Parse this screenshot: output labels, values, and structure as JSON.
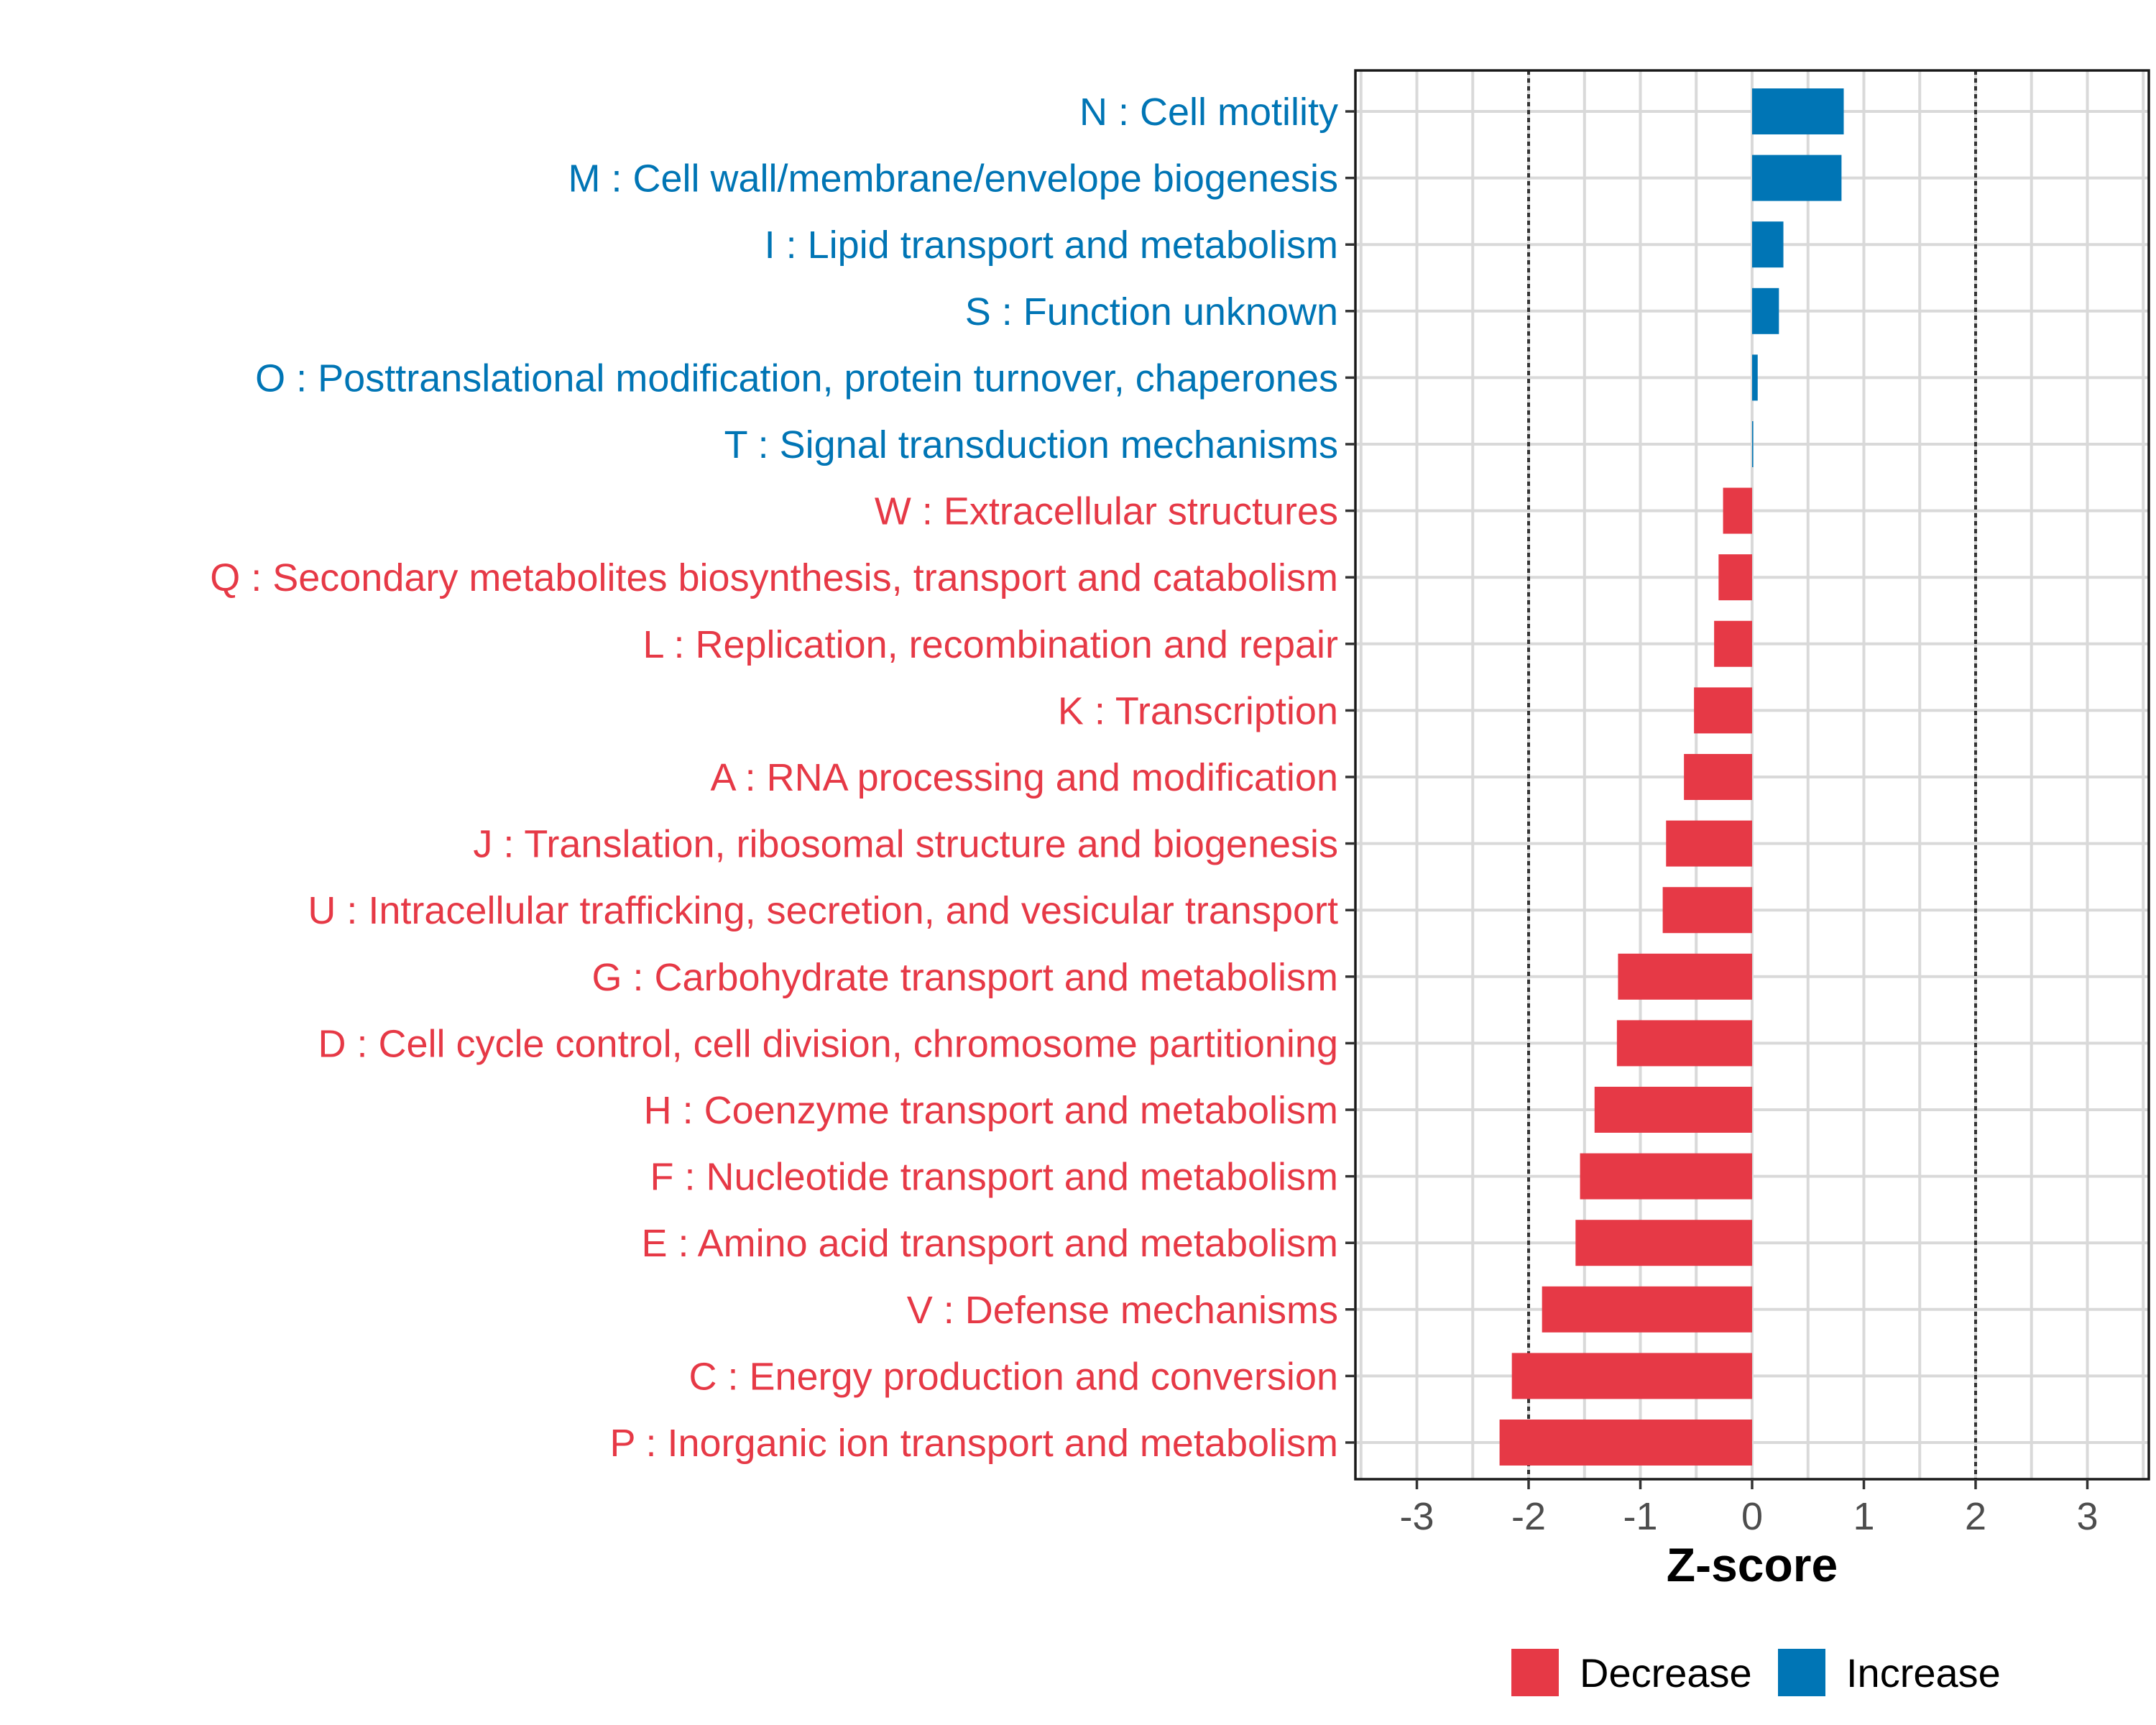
{
  "chart_data": {
    "type": "bar",
    "orientation": "horizontal",
    "title": "",
    "xlabel": "Z-score",
    "ylabel": "",
    "xlim": [
      -3.55,
      3.55
    ],
    "xticks": [
      -3,
      -2,
      -1,
      0,
      1,
      2,
      3
    ],
    "xtick_labels": [
      "-3",
      "-2",
      "-1",
      "0",
      "1",
      "2",
      "3"
    ],
    "reference_lines": [
      -2,
      2
    ],
    "grid": true,
    "legend_position": "bottom",
    "colors": {
      "Decrease": "#E63946",
      "Increase": "#0075B5"
    },
    "legend": [
      {
        "label": "Decrease",
        "color": "#E63946"
      },
      {
        "label": "Increase",
        "color": "#0075B5"
      }
    ],
    "categories": [
      "N : Cell motility",
      "M : Cell wall/membrane/envelope biogenesis",
      "I : Lipid transport and metabolism",
      "S : Function unknown",
      "O : Posttranslational modification, protein turnover, chaperones",
      "T : Signal transduction mechanisms",
      "W : Extracellular structures",
      "Q : Secondary metabolites biosynthesis, transport and catabolism",
      "L : Replication, recombination and repair",
      "K : Transcription",
      "A : RNA processing and modification",
      "J : Translation, ribosomal structure and biogenesis",
      "U : Intracellular trafficking, secretion, and vesicular transport",
      "G : Carbohydrate transport and metabolism",
      "D : Cell cycle control, cell division, chromosome partitioning",
      "H : Coenzyme transport and metabolism",
      "F : Nucleotide transport and metabolism",
      "E : Amino acid transport and metabolism",
      "V : Defense mechanisms",
      "C : Energy production and conversion",
      "P : Inorganic ion transport and metabolism"
    ],
    "values": [
      0.82,
      0.8,
      0.28,
      0.24,
      0.05,
      0.01,
      -0.26,
      -0.3,
      -0.34,
      -0.52,
      -0.61,
      -0.77,
      -0.8,
      -1.2,
      -1.21,
      -1.41,
      -1.54,
      -1.58,
      -1.88,
      -2.15,
      -2.26
    ],
    "groups": [
      "Increase",
      "Increase",
      "Increase",
      "Increase",
      "Increase",
      "Increase",
      "Decrease",
      "Decrease",
      "Decrease",
      "Decrease",
      "Decrease",
      "Decrease",
      "Decrease",
      "Decrease",
      "Decrease",
      "Decrease",
      "Decrease",
      "Decrease",
      "Decrease",
      "Decrease",
      "Decrease"
    ]
  }
}
